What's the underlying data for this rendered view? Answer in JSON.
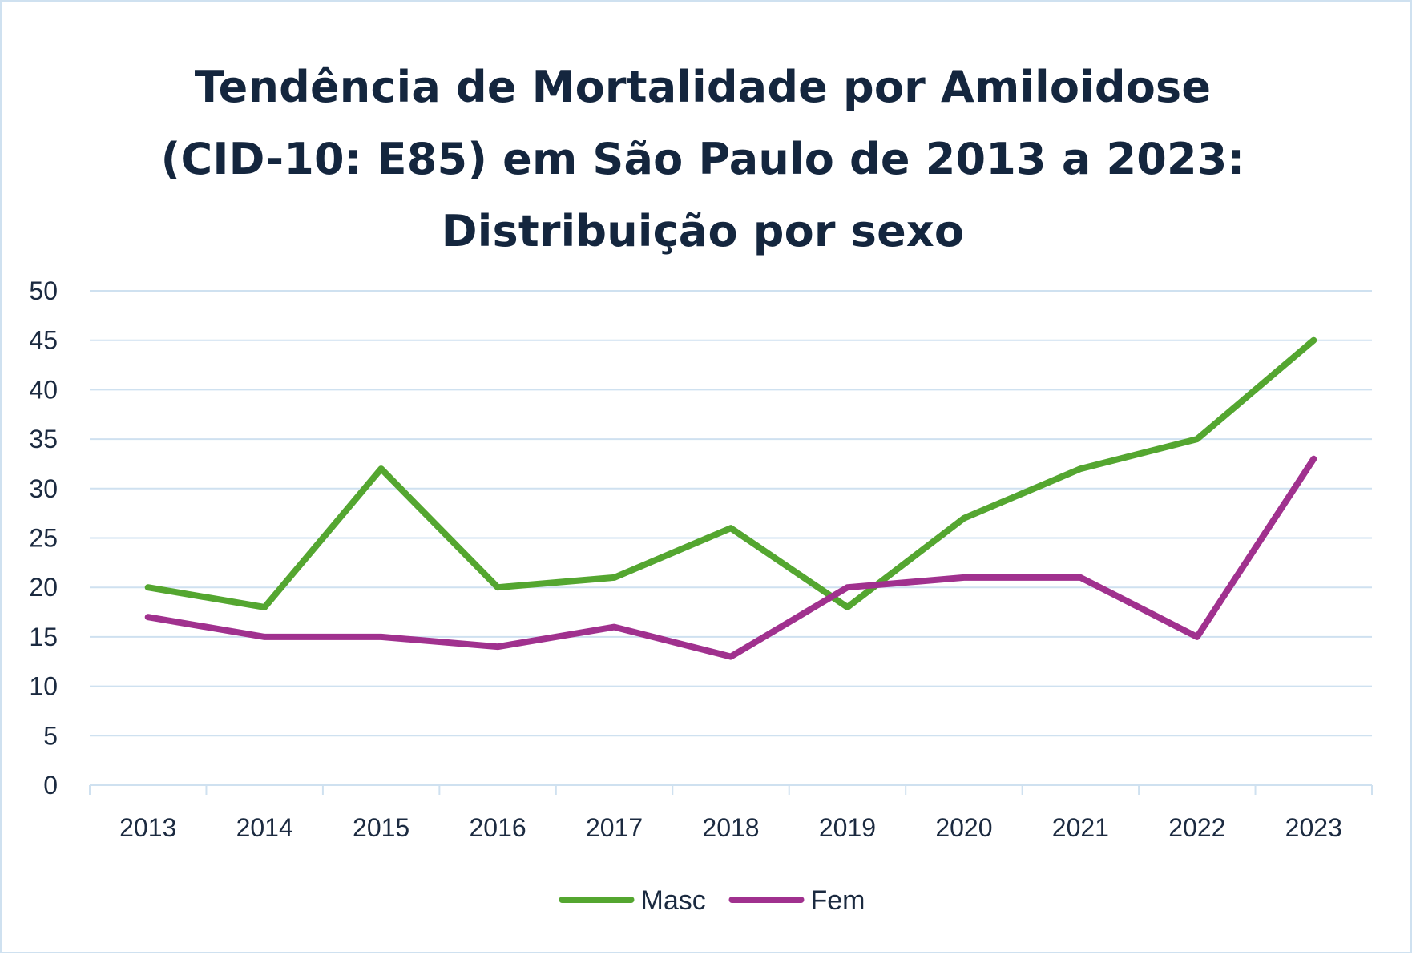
{
  "chart_data": {
    "type": "line",
    "title_lines": [
      "Tendência de Mortalidade por Amiloidose",
      "(CID-10: E85) em São Paulo de 2013 a 2023:",
      "Distribuição por sexo"
    ],
    "categories": [
      "2013",
      "2014",
      "2015",
      "2016",
      "2017",
      "2018",
      "2019",
      "2020",
      "2021",
      "2022",
      "2023"
    ],
    "series": [
      {
        "name": "Masc",
        "color": "#54a630",
        "values": [
          20,
          18,
          32,
          20,
          21,
          26,
          18,
          27,
          32,
          35,
          45
        ]
      },
      {
        "name": "Fem",
        "color": "#a0318e",
        "values": [
          17,
          15,
          15,
          14,
          16,
          13,
          20,
          21,
          21,
          15,
          33
        ]
      }
    ],
    "ylim": [
      0,
      50
    ],
    "yticks": [
      0,
      5,
      10,
      15,
      20,
      25,
      30,
      35,
      40,
      45,
      50
    ],
    "grid": true,
    "legend_position": "bottom",
    "colors": {
      "title": "#14263e",
      "gridline": "#cfe1f0",
      "text": "#1b2a40"
    }
  }
}
